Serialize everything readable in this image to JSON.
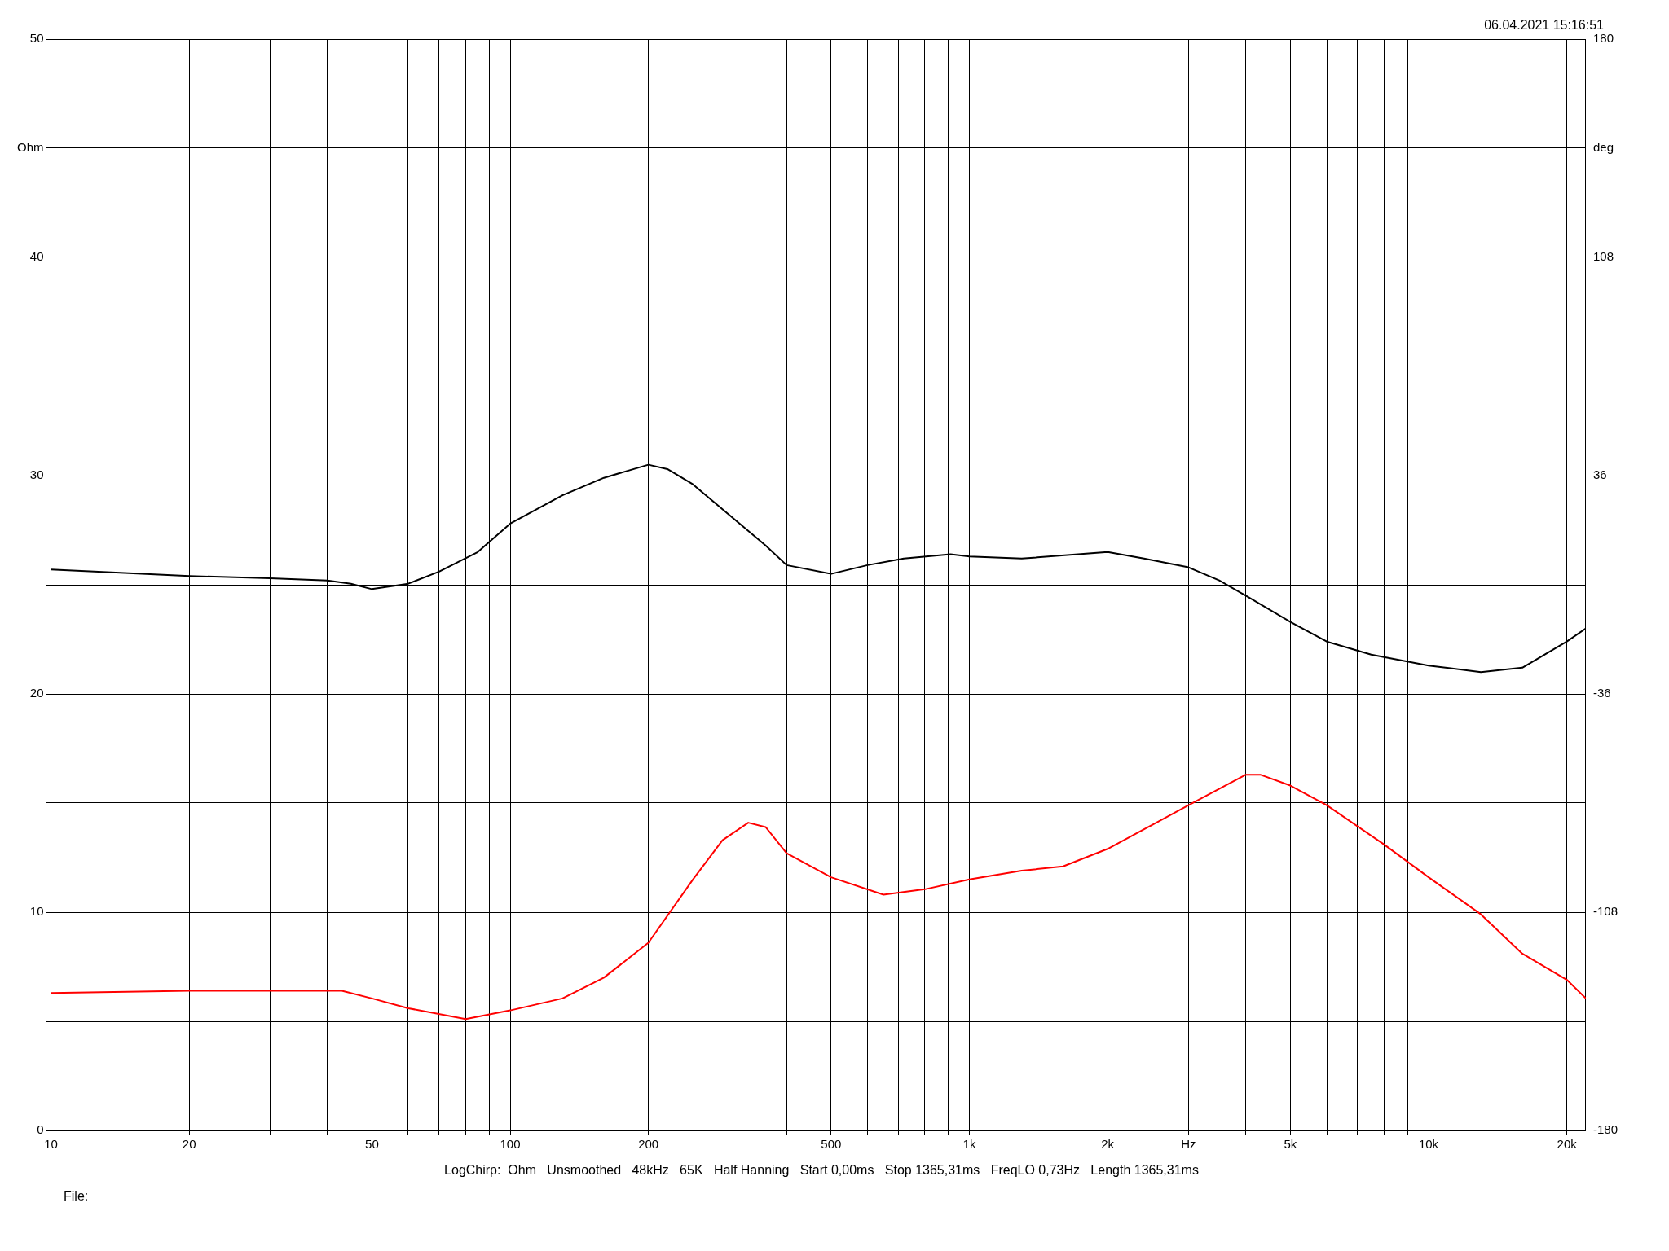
{
  "chart_data": {
    "type": "line",
    "annotations": [
      "06.04.2021 15:16:51",
      "LogChirp:  Ohm   Unsmoothed   48kHz   65K   Half Hanning   Start 0,00ms   Stop 1365,31ms   FreqLO 0,73Hz   Length 1365,31ms",
      "File:"
    ],
    "log": "x",
    "grid": true,
    "legend": false,
    "marker": "none",
    "line_style": "solid",
    "xlim": [
      10,
      22000
    ],
    "xticks": [
      10,
      20,
      {
        "value": 30,
        "label": null
      },
      {
        "value": 40,
        "label": null
      },
      50,
      {
        "value": 60,
        "label": null
      },
      {
        "value": 70,
        "label": null
      },
      {
        "value": 80,
        "label": null
      },
      {
        "value": 90,
        "label": null
      },
      100,
      200,
      {
        "value": 300,
        "label": null
      },
      {
        "value": 400,
        "label": null
      },
      500,
      {
        "value": 600,
        "label": null
      },
      {
        "value": 700,
        "label": null
      },
      {
        "value": 800,
        "label": null
      },
      {
        "value": 900,
        "label": null
      },
      {
        "value": 1000,
        "label": "1k"
      },
      {
        "value": 2000,
        "label": "2k"
      },
      {
        "value": 3000,
        "label": "Hz"
      },
      {
        "value": 4000,
        "label": null
      },
      {
        "value": 5000,
        "label": "5k"
      },
      {
        "value": 6000,
        "label": null
      },
      {
        "value": 7000,
        "label": null
      },
      {
        "value": 8000,
        "label": null
      },
      {
        "value": 9000,
        "label": null
      },
      {
        "value": 10000,
        "label": "10k"
      },
      {
        "value": 20000,
        "label": "20k"
      }
    ],
    "ylim": [
      0,
      50
    ],
    "yticks": [
      0,
      {
        "value": 5,
        "label": null
      },
      10,
      {
        "value": 15,
        "label": null
      },
      20,
      {
        "value": 25,
        "label": null
      },
      30,
      {
        "value": 35,
        "label": null
      },
      40,
      {
        "value": 45,
        "label": "Ohm"
      },
      50
    ],
    "y2lim": [
      -180,
      180
    ],
    "y2ticks": [
      -180,
      -108,
      -36,
      36,
      108,
      {
        "value": 144,
        "label": "deg"
      },
      180
    ],
    "series": [
      {
        "color": "#000000",
        "x": [
          10,
          20,
          30,
          40,
          45,
          50,
          60,
          70,
          85,
          100,
          130,
          160,
          200,
          220,
          250,
          300,
          360,
          400,
          500,
          600,
          720,
          910,
          1000,
          1300,
          2000,
          2400,
          3000,
          3500,
          4000,
          5000,
          6000,
          7500,
          10000,
          13000,
          16000,
          20000,
          22000
        ],
        "values": [
          25.7,
          25.4,
          25.3,
          25.2,
          25.05,
          24.8,
          25.05,
          25.6,
          26.5,
          27.8,
          29.1,
          29.9,
          30.5,
          30.3,
          29.6,
          28.2,
          26.8,
          25.9,
          25.5,
          25.9,
          26.2,
          26.4,
          26.3,
          26.2,
          26.5,
          26.2,
          25.8,
          25.2,
          24.5,
          23.3,
          22.4,
          21.8,
          21.3,
          21.0,
          21.2,
          22.4,
          23.0
        ]
      },
      {
        "color": "#ff0000",
        "x": [
          10,
          20,
          30,
          40,
          43,
          50,
          60,
          80,
          100,
          130,
          160,
          200,
          250,
          290,
          330,
          360,
          400,
          500,
          650,
          800,
          1000,
          1300,
          1600,
          2000,
          2500,
          3000,
          4000,
          4300,
          5000,
          6000,
          8000,
          10000,
          13000,
          16000,
          20000,
          22000
        ],
        "values": [
          6.3,
          6.4,
          6.4,
          6.4,
          6.4,
          6.05,
          5.6,
          5.1,
          5.5,
          6.05,
          7.0,
          8.6,
          11.5,
          13.3,
          14.1,
          13.9,
          12.7,
          11.6,
          10.8,
          11.05,
          11.5,
          11.9,
          12.1,
          12.9,
          14.0,
          14.9,
          16.3,
          16.3,
          15.8,
          14.9,
          13.1,
          11.6,
          9.9,
          8.1,
          6.9,
          6.05
        ]
      }
    ]
  }
}
